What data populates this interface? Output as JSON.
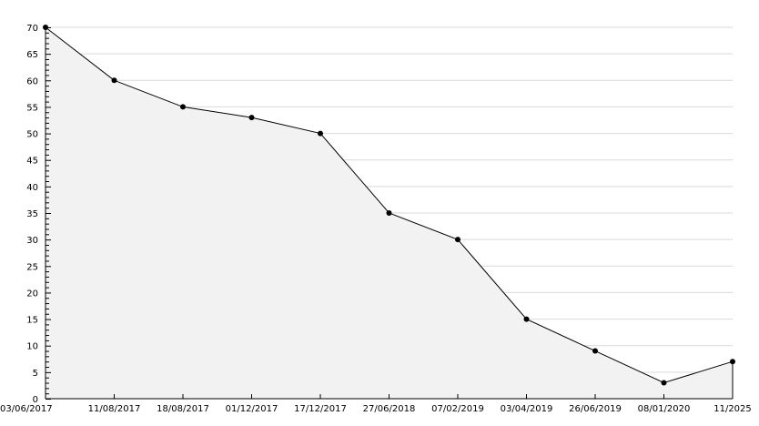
{
  "chart_data": {
    "type": "area",
    "title": "",
    "xlabel": "",
    "ylabel": "",
    "categories": [
      "03/06/2017",
      "11/08/2017",
      "18/08/2017",
      "01/12/2017",
      "17/12/2017",
      "27/06/2018",
      "07/02/2019",
      "03/04/2019",
      "26/06/2019",
      "08/01/2020",
      "11/2025"
    ],
    "values": [
      70,
      60,
      55,
      53,
      50,
      35,
      30,
      15,
      9,
      3,
      7
    ],
    "ylim": [
      0,
      70
    ],
    "y_major_step": 5,
    "y_minor_step": 1,
    "grid": true,
    "legend": "none",
    "colors": {
      "line": "#000000",
      "fill": "#f2f2f2",
      "grid": "#d9d9d9",
      "marker": "#000000"
    }
  }
}
